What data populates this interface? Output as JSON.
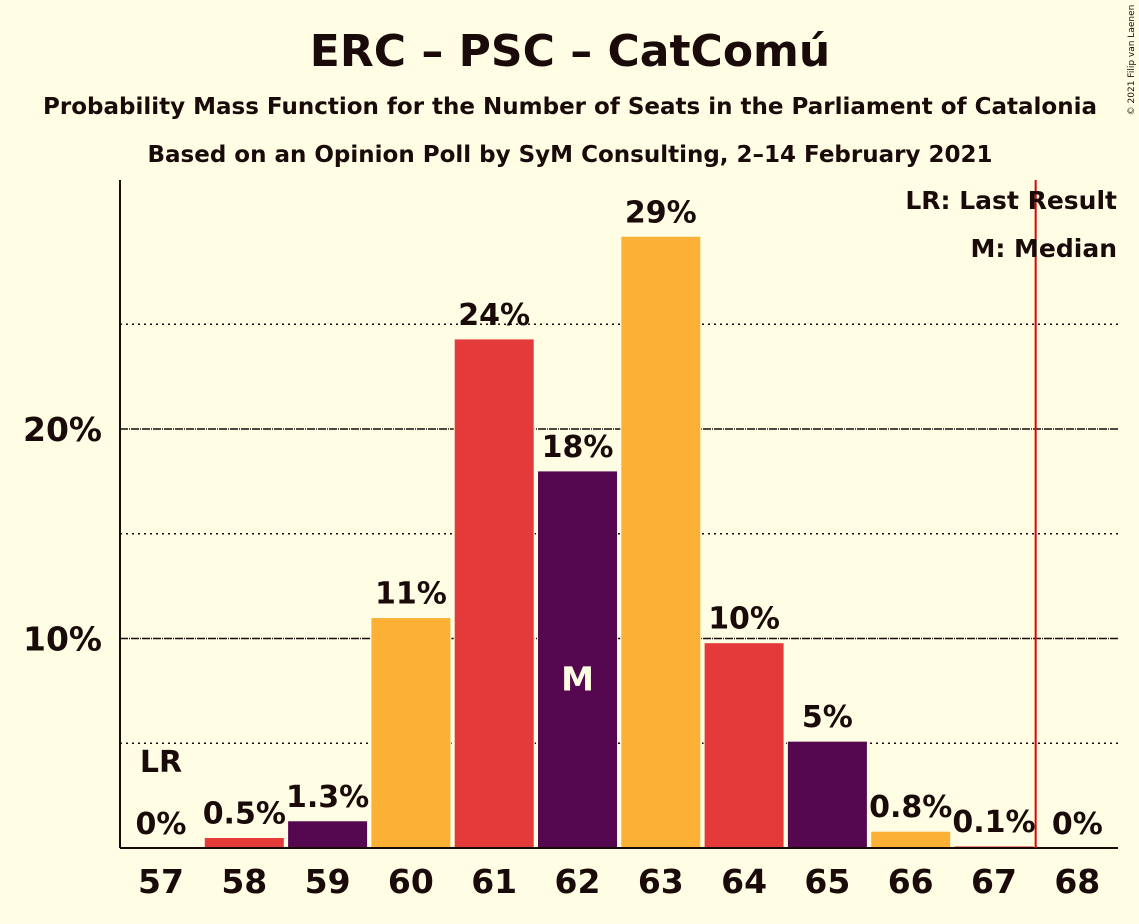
{
  "chart_data": {
    "type": "bar",
    "title": "ERC – PSC – CatComú",
    "subtitle": "Probability Mass Function for the Number of Seats in the Parliament of Catalonia",
    "subtitle2": "Based on an Opinion Poll by SyM Consulting, 2–14 February 2021",
    "copyright": "© 2021 Filip van Laenen",
    "legend": {
      "lr": "LR: Last Result",
      "m": "M: Median",
      "placement": "top-right"
    },
    "categories": [
      "57",
      "58",
      "59",
      "60",
      "61",
      "62",
      "63",
      "64",
      "65",
      "66",
      "67",
      "68"
    ],
    "values": [
      0,
      0.5,
      1.3,
      11,
      24.3,
      18,
      29.2,
      9.8,
      5.1,
      0.8,
      0.1,
      0
    ],
    "value_labels": [
      "0%",
      "0.5%",
      "1.3%",
      "11%",
      "24%",
      "18%",
      "29%",
      "10%",
      "5%",
      "0.8%",
      "0.1%",
      "0%"
    ],
    "bar_colors": [
      "#E53A3A",
      "#E53A3A",
      "#55084F",
      "#FCB136",
      "#E53A3A",
      "#55084F",
      "#FCB136",
      "#E53A3A",
      "#55084F",
      "#FCB136",
      "#E53A3A",
      "#E53A3A"
    ],
    "y_ticks": [
      {
        "value": 10,
        "label": "10%"
      },
      {
        "value": 20,
        "label": "20%"
      }
    ],
    "minor_gridlines": [
      5,
      15,
      25
    ],
    "ylim": [
      0,
      31.7
    ],
    "last_result_seat": "57",
    "last_result_marker": "LR",
    "median_seat": "62",
    "median_marker": "M",
    "majority_line_after_seat": "67",
    "colors": {
      "background": "#FFFDE3",
      "text": "#1a0a0a",
      "majority_line": "#E00000"
    }
  }
}
